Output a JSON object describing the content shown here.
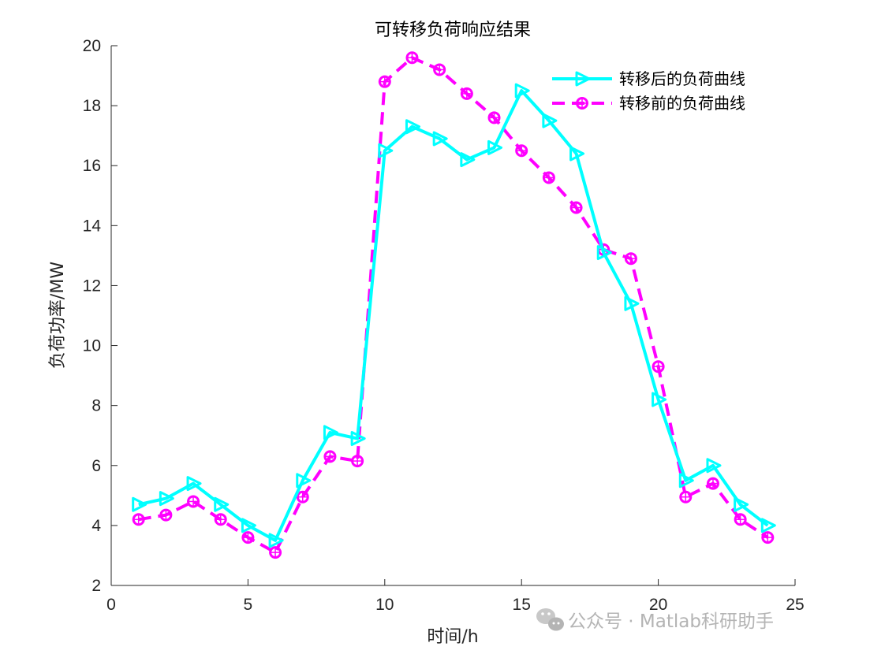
{
  "chart_data": {
    "type": "line",
    "title": "可转移负荷响应结果",
    "xlabel": "时间/h",
    "ylabel": "负荷功率/MW",
    "xlim": [
      0,
      25
    ],
    "ylim": [
      2,
      20
    ],
    "xticks": [
      0,
      5,
      10,
      15,
      20,
      25
    ],
    "yticks": [
      2,
      4,
      6,
      8,
      10,
      12,
      14,
      16,
      18,
      20
    ],
    "grid": false,
    "legend_position": "top-right",
    "x": [
      1,
      2,
      3,
      4,
      5,
      6,
      7,
      8,
      9,
      10,
      11,
      12,
      13,
      14,
      15,
      16,
      17,
      18,
      19,
      20,
      21,
      22,
      23,
      24
    ],
    "series": [
      {
        "name": "转移后的负荷曲线",
        "color": "#00ffff",
        "line_style": "solid",
        "marker": "triangle-right",
        "values": [
          4.7,
          4.9,
          5.4,
          4.7,
          4.0,
          3.5,
          5.5,
          7.1,
          6.9,
          16.5,
          17.3,
          16.9,
          16.2,
          16.6,
          18.5,
          17.5,
          16.4,
          13.1,
          11.4,
          8.2,
          5.5,
          6.0,
          4.7,
          4.0
        ]
      },
      {
        "name": "转移前的负荷曲线",
        "color": "#ff00ff",
        "line_style": "dashed",
        "marker": "circle-hexagram",
        "values": [
          4.2,
          4.35,
          4.8,
          4.2,
          3.6,
          3.1,
          4.95,
          6.3,
          6.15,
          18.8,
          19.6,
          19.2,
          18.4,
          17.6,
          16.5,
          15.6,
          14.6,
          13.2,
          12.9,
          9.3,
          4.95,
          5.4,
          4.2,
          3.6
        ]
      }
    ]
  },
  "watermark": {
    "text": "公众号 · Matlab科研助手",
    "icon": "wechat-icon"
  }
}
